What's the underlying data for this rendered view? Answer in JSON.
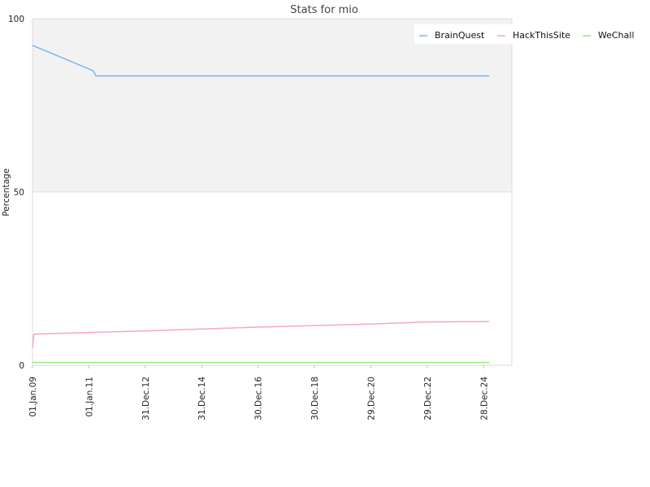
{
  "chart_data": {
    "type": "line",
    "title": "Stats for mio",
    "xlabel": "",
    "ylabel": "Percentage",
    "ylim": [
      0,
      100
    ],
    "y_ticks": [
      0,
      50,
      100
    ],
    "x_ticks": [
      "01.Jan.09",
      "01.Jan.11",
      "31.Dec.12",
      "31.Dec.14",
      "30.Dec.16",
      "30.Dec.18",
      "29.Dec.20",
      "29.Dec.22",
      "28.Dec.24"
    ],
    "x_tick_values": [
      2009.0,
      2011.0,
      2013.0,
      2015.0,
      2017.0,
      2019.0,
      2021.0,
      2023.0,
      2025.0
    ],
    "xlim": [
      2009.0,
      2026.0
    ],
    "legend_position": "top-right",
    "grid": false,
    "shaded_band": [
      50,
      100
    ],
    "series": [
      {
        "name": "BrainQuest",
        "color": "#7cb5ec",
        "points": [
          [
            2009.0,
            92.3
          ],
          [
            2011.15,
            85.0
          ],
          [
            2011.25,
            83.5
          ],
          [
            2025.2,
            83.5
          ]
        ]
      },
      {
        "name": "HackThisSite",
        "color": "#f7a6cb",
        "points": [
          [
            2009.0,
            5.0
          ],
          [
            2009.05,
            9.0
          ],
          [
            2013.0,
            9.9
          ],
          [
            2017.0,
            11.0
          ],
          [
            2021.0,
            11.9
          ],
          [
            2023.0,
            12.5
          ],
          [
            2025.2,
            12.6
          ]
        ]
      },
      {
        "name": "WeChall",
        "color": "#90ed7d",
        "points": [
          [
            2009.0,
            0.8
          ],
          [
            2025.2,
            0.8
          ]
        ]
      }
    ]
  }
}
